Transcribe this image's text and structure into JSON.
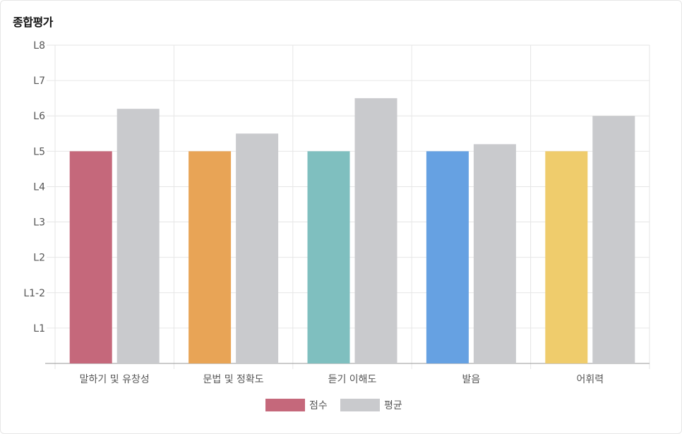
{
  "title": "종합평가",
  "chart_data": {
    "type": "bar",
    "title": "종합평가",
    "categories": [
      "말하기 및 유창성",
      "문법 및 정확도",
      "듣기 이해도",
      "발음",
      "어휘력"
    ],
    "y_ticks": [
      "L1",
      "L1-2",
      "L2",
      "L3",
      "L4",
      "L5",
      "L6",
      "L7",
      "L8"
    ],
    "ylim": [
      0,
      9
    ],
    "series": [
      {
        "name": "점수",
        "values": [
          6,
          6,
          6,
          6,
          6
        ],
        "colors": [
          "#c5687b",
          "#e8a456",
          "#7fbfbf",
          "#66a1e2",
          "#efcc6c"
        ]
      },
      {
        "name": "평균",
        "values": [
          7.2,
          6.5,
          7.5,
          6.2,
          7.0
        ],
        "colors": [
          "#c9cacd",
          "#c9cacd",
          "#c9cacd",
          "#c9cacd",
          "#c9cacd"
        ]
      }
    ],
    "legend": [
      {
        "label": "점수",
        "color": "#c5687b"
      },
      {
        "label": "평균",
        "color": "#c9cacd"
      }
    ],
    "legend_position": "bottom-center",
    "grid": true
  }
}
